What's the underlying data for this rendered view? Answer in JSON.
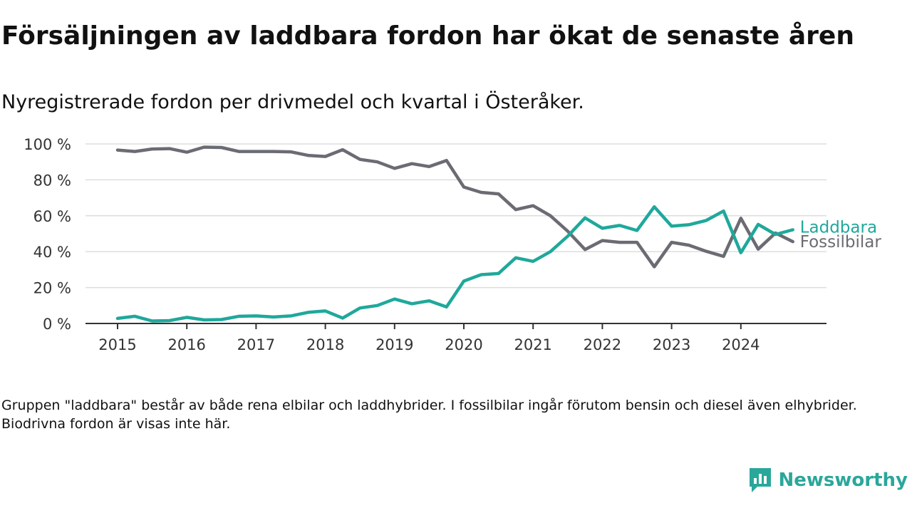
{
  "title": "Försäljningen av laddbara fordon har ökat de senaste åren",
  "subtitle": "Nyregistrerade fordon per drivmedel och kvartal i Österåker.",
  "footnote": "Gruppen \"laddbara\" består av både rena elbilar och laddhybrider. I fossilbilar ingår förutom bensin och diesel även elhybrider. Biodrivna fordon är visas inte här.",
  "brand": {
    "name": "Newsworthy",
    "color": "#2aa79b"
  },
  "chart_data": {
    "type": "line",
    "title": "Försäljningen av laddbara fordon har ökat de senaste åren",
    "subtitle": "Nyregistrerade fordon per drivmedel och kvartal i Österåker.",
    "xlabel": "",
    "ylabel": "",
    "ylim": [
      0,
      100
    ],
    "xlim": [
      2015,
      2025
    ],
    "grid": true,
    "legend": "direct-labels-right",
    "x_ticks": [
      2015,
      2016,
      2017,
      2018,
      2019,
      2020,
      2021,
      2022,
      2023,
      2024
    ],
    "x_tick_labels": [
      "2015",
      "2016",
      "2017",
      "2018",
      "2019",
      "2020",
      "2021",
      "2022",
      "2023",
      "2024"
    ],
    "y_ticks": [
      0,
      20,
      40,
      60,
      80,
      100
    ],
    "y_tick_labels": [
      "0 %",
      "20 %",
      "40 %",
      "60 %",
      "80 %",
      "100 %"
    ],
    "x": [
      2015.0,
      2015.25,
      2015.5,
      2015.75,
      2016.0,
      2016.25,
      2016.5,
      2016.75,
      2017.0,
      2017.25,
      2017.5,
      2017.75,
      2018.0,
      2018.25,
      2018.5,
      2018.75,
      2019.0,
      2019.25,
      2019.5,
      2019.75,
      2020.0,
      2020.25,
      2020.5,
      2020.75,
      2021.0,
      2021.25,
      2021.5,
      2021.75,
      2022.0,
      2022.25,
      2022.5,
      2022.75,
      2023.0,
      2023.25,
      2023.5,
      2023.75,
      2024.0,
      2024.25,
      2024.5,
      2024.75
    ],
    "series": [
      {
        "name": "Laddbara",
        "color": "#1fa89b",
        "values": [
          2.8,
          4.0,
          1.4,
          1.6,
          3.4,
          2.0,
          2.2,
          4.0,
          4.2,
          3.6,
          4.2,
          6.2,
          7.0,
          3.0,
          8.6,
          10.0,
          13.6,
          11.0,
          12.6,
          9.2,
          23.6,
          27.2,
          27.8,
          36.6,
          34.6,
          40.0,
          48.6,
          58.8,
          53.0,
          54.6,
          51.8,
          65.0,
          54.2,
          55.0,
          57.4,
          62.6,
          39.4,
          55.2,
          49.6,
          52.2
        ]
      },
      {
        "name": "Fossilbilar",
        "color": "#6b6b73",
        "values": [
          96.6,
          95.8,
          97.2,
          97.4,
          95.4,
          98.2,
          98.0,
          95.8,
          95.8,
          95.8,
          95.6,
          93.6,
          93.0,
          96.8,
          91.4,
          90.0,
          86.4,
          89.0,
          87.4,
          90.8,
          76.0,
          73.0,
          72.2,
          63.4,
          65.6,
          60.0,
          51.4,
          41.2,
          46.2,
          45.2,
          45.2,
          31.6,
          45.2,
          43.6,
          40.2,
          37.4,
          58.6,
          41.4,
          50.4,
          45.6
        ]
      }
    ]
  }
}
